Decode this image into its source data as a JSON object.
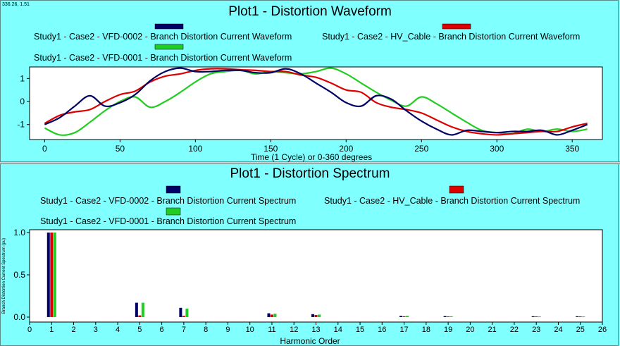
{
  "coords_readout": "336.26, 1.51",
  "chart_data": [
    {
      "type": "line",
      "title": "Plot1 - Distortion Waveform",
      "xlabel": "Time (1 Cycle) or 0-360 degrees",
      "ylabel": "",
      "xlim": [
        -10,
        370
      ],
      "ylim": [
        -1.65,
        1.5
      ],
      "xticks": [
        0,
        50,
        100,
        150,
        200,
        250,
        300,
        350
      ],
      "yticks": [
        1,
        0,
        -1
      ],
      "grid": false,
      "series": [
        {
          "name": "Study1 - Case2 - VFD-0002 - Branch Distortion Current Waveform",
          "color": "#000066",
          "x": [
            0,
            10,
            20,
            30,
            40,
            50,
            60,
            70,
            80,
            90,
            100,
            110,
            120,
            130,
            140,
            150,
            160,
            170,
            180,
            190,
            200,
            210,
            220,
            230,
            240,
            250,
            260,
            270,
            280,
            290,
            300,
            310,
            320,
            330,
            340,
            350,
            360
          ],
          "y": [
            -1.0,
            -0.7,
            -0.2,
            0.25,
            -0.2,
            -0.05,
            0.3,
            0.9,
            1.3,
            1.45,
            1.3,
            1.3,
            1.35,
            1.35,
            1.25,
            1.25,
            1.42,
            1.2,
            0.8,
            0.4,
            -0.05,
            -0.2,
            0.25,
            0.1,
            -0.4,
            -0.85,
            -1.2,
            -1.45,
            -1.25,
            -1.3,
            -1.35,
            -1.3,
            -1.3,
            -1.25,
            -1.45,
            -1.25,
            -1.0
          ]
        },
        {
          "name": "Study1 - Case2 - HV_Cable - Branch Distortion Current Waveform",
          "color": "#dd0000",
          "x": [
            0,
            10,
            20,
            30,
            40,
            50,
            60,
            70,
            80,
            90,
            100,
            110,
            120,
            130,
            140,
            150,
            160,
            170,
            180,
            190,
            200,
            210,
            220,
            230,
            240,
            250,
            260,
            270,
            280,
            290,
            300,
            310,
            320,
            330,
            340,
            350,
            360
          ],
          "y": [
            -0.95,
            -0.6,
            -0.45,
            -0.35,
            0.0,
            0.3,
            0.45,
            0.85,
            1.1,
            1.2,
            1.35,
            1.42,
            1.42,
            1.38,
            1.35,
            1.3,
            1.3,
            1.15,
            1.05,
            0.8,
            0.5,
            0.4,
            -0.05,
            -0.25,
            -0.35,
            -0.5,
            -0.8,
            -1.1,
            -1.3,
            -1.4,
            -1.45,
            -1.4,
            -1.35,
            -1.3,
            -1.3,
            -1.1,
            -0.95
          ]
        },
        {
          "name": "Study1 - Case2 - VFD-0001 - Branch Distortion Current Waveform",
          "color": "#22cc22",
          "x": [
            0,
            10,
            20,
            30,
            40,
            50,
            60,
            70,
            80,
            90,
            100,
            110,
            120,
            130,
            140,
            150,
            160,
            170,
            180,
            190,
            200,
            210,
            220,
            230,
            240,
            250,
            260,
            270,
            280,
            290,
            300,
            310,
            320,
            330,
            340,
            350,
            360
          ],
          "y": [
            -1.15,
            -1.45,
            -1.35,
            -0.9,
            -0.4,
            0.0,
            0.2,
            -0.25,
            0.0,
            0.4,
            0.85,
            1.2,
            1.3,
            1.35,
            1.2,
            1.3,
            1.25,
            1.2,
            1.3,
            1.45,
            1.2,
            0.8,
            0.4,
            0.05,
            -0.2,
            0.2,
            -0.1,
            -0.5,
            -0.9,
            -1.25,
            -1.35,
            -1.4,
            -1.2,
            -1.3,
            -1.2,
            -1.3,
            -1.2
          ]
        }
      ]
    },
    {
      "type": "bar",
      "title": "Plot1 - Distortion Spectrum",
      "xlabel": "Harmonic Order",
      "ylabel": "Branch Distortion Current Spectrum (pu)",
      "xlim": [
        0,
        26
      ],
      "ylim": [
        0,
        1.0
      ],
      "categories": [
        0,
        1,
        2,
        3,
        4,
        5,
        6,
        7,
        8,
        9,
        10,
        11,
        12,
        13,
        14,
        15,
        16,
        17,
        18,
        19,
        20,
        21,
        22,
        23,
        24,
        25,
        26
      ],
      "yticks": [
        1.0,
        0.5,
        0.0
      ],
      "grid": false,
      "series": [
        {
          "name": "Study1 - Case2 - VFD-0002 - Branch Distortion Current Spectrum",
          "color": "#000066",
          "x": [
            1,
            5,
            7,
            11,
            13,
            17,
            19,
            23,
            25
          ],
          "values": [
            1.0,
            0.17,
            0.11,
            0.045,
            0.035,
            0.015,
            0.012,
            0.01,
            0.01
          ]
        },
        {
          "name": "Study1 - Case2 - HV_Cable - Branch Distortion Current Spectrum",
          "color": "#dd0000",
          "x": [
            1,
            5,
            7,
            11,
            13,
            17,
            19,
            23,
            25
          ],
          "values": [
            1.0,
            0.02,
            0.015,
            0.03,
            0.025,
            0.01,
            0.008,
            0.008,
            0.008
          ]
        },
        {
          "name": "Study1 - Case2 - VFD-0001 - Branch Distortion Current Spectrum",
          "color": "#22cc22",
          "x": [
            1,
            5,
            7,
            11,
            13,
            17,
            19,
            23,
            25
          ],
          "values": [
            1.0,
            0.17,
            0.1,
            0.04,
            0.03,
            0.015,
            0.01,
            0.008,
            0.008
          ]
        }
      ]
    }
  ]
}
